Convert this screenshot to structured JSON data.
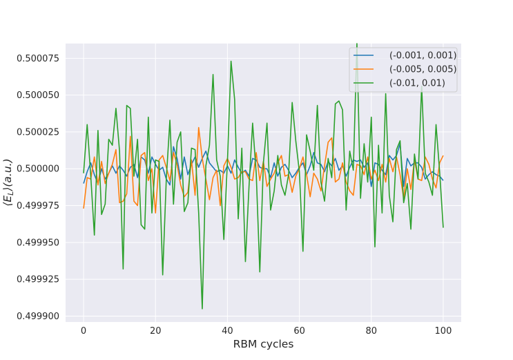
{
  "chart_data": {
    "type": "line",
    "title": "",
    "xlabel": "RBM cycles",
    "ylabel": "⟨E_L⟩(a.u.)",
    "xlim": [
      -5,
      105
    ],
    "ylim": [
      0.499896,
      0.500085
    ],
    "xticks": [
      0,
      20,
      40,
      60,
      80,
      100
    ],
    "xtick_labels": [
      "0",
      "20",
      "40",
      "60",
      "80",
      "100"
    ],
    "yticks": [
      0.4999,
      0.499925,
      0.49995,
      0.499975,
      0.5,
      0.500025,
      0.50005,
      0.500075
    ],
    "ytick_labels": [
      "0.499900",
      "0.499925",
      "0.499950",
      "0.499975",
      "0.500000",
      "0.500025",
      "0.500050",
      "0.500075"
    ],
    "grid": true,
    "legend_position": "top-right",
    "series": [
      {
        "name": "(-0.001, 0.001)",
        "color": "#1f77b4",
        "x": [
          0,
          1,
          2,
          3,
          4,
          5,
          6,
          7,
          8,
          9,
          10,
          11,
          12,
          13,
          14,
          15,
          16,
          17,
          18,
          19,
          20,
          21,
          22,
          23,
          24,
          25,
          26,
          27,
          28,
          29,
          30,
          31,
          32,
          33,
          34,
          35,
          36,
          37,
          38,
          39,
          40,
          41,
          42,
          43,
          44,
          45,
          46,
          47,
          48,
          49,
          50,
          51,
          52,
          53,
          54,
          55,
          56,
          57,
          58,
          59,
          60,
          61,
          62,
          63,
          64,
          65,
          66,
          67,
          68,
          69,
          70,
          71,
          72,
          73,
          74,
          75,
          76,
          77,
          78,
          79,
          80,
          81,
          82,
          83,
          84,
          85,
          86,
          87,
          88,
          89,
          90,
          91,
          92,
          93,
          94,
          95,
          96,
          97,
          98,
          99,
          100
        ],
        "y": [
          0.49999,
          0.499998,
          0.500004,
          0.499996,
          0.49999,
          0.5,
          0.499993,
          0.499997,
          0.500002,
          0.499997,
          0.500002,
          0.499999,
          0.499995,
          0.500001,
          0.500003,
          0.499994,
          0.500008,
          0.500006,
          0.499997,
          0.500008,
          0.500003,
          0.499999,
          0.500001,
          0.499993,
          0.499989,
          0.500015,
          0.500007,
          0.499993,
          0.500008,
          0.499996,
          0.500003,
          0.500008,
          0.500001,
          0.500007,
          0.500012,
          0.500004,
          0.500001,
          0.499998,
          0.499999,
          0.499997,
          0.500002,
          0.499997,
          0.500006,
          0.500001,
          0.499997,
          0.499999,
          0.499995,
          0.500007,
          0.500006,
          0.500001,
          0.5,
          0.5,
          0.499994,
          0.500004,
          0.499995,
          0.500001,
          0.500003,
          0.499999,
          0.499994,
          0.499997,
          0.500001,
          0.500004,
          0.499996,
          0.500002,
          0.500011,
          0.500004,
          0.500003,
          0.499998,
          0.500005,
          0.500002,
          0.500007,
          0.499999,
          0.500002,
          0.499995,
          0.500001,
          0.500006,
          0.500005,
          0.500006,
          0.500001,
          0.500004,
          0.499988,
          0.500004,
          0.500003,
          0.499999,
          0.499996,
          0.500009,
          0.500006,
          0.500009,
          0.500017,
          0.499988,
          0.500007,
          0.500002,
          0.500004,
          0.500004,
          0.500001,
          0.499993,
          0.499996,
          0.499998,
          0.499996,
          0.499995,
          0.499992
        ]
      },
      {
        "name": "(-0.005, 0.005)",
        "color": "#ff7f0e",
        "x": [
          0,
          1,
          2,
          3,
          4,
          5,
          6,
          7,
          8,
          9,
          10,
          11,
          12,
          13,
          14,
          15,
          16,
          17,
          18,
          19,
          20,
          21,
          22,
          23,
          24,
          25,
          26,
          27,
          28,
          29,
          30,
          31,
          32,
          33,
          34,
          35,
          36,
          37,
          38,
          39,
          40,
          41,
          42,
          43,
          44,
          45,
          46,
          47,
          48,
          49,
          50,
          51,
          52,
          53,
          54,
          55,
          56,
          57,
          58,
          59,
          60,
          61,
          62,
          63,
          64,
          65,
          66,
          67,
          68,
          69,
          70,
          71,
          72,
          73,
          74,
          75,
          76,
          77,
          78,
          79,
          80,
          81,
          82,
          83,
          84,
          85,
          86,
          87,
          88,
          89,
          90,
          91,
          92,
          93,
          94,
          95,
          96,
          97,
          98,
          99,
          100
        ],
        "y": [
          0.499973,
          0.499994,
          0.499993,
          0.500008,
          0.499989,
          0.500005,
          0.49999,
          0.499997,
          0.500003,
          0.500013,
          0.499977,
          0.499978,
          0.499983,
          0.500022,
          0.499978,
          0.499975,
          0.500009,
          0.500011,
          0.499992,
          0.5,
          0.49997,
          0.500006,
          0.500009,
          0.500001,
          0.499992,
          0.500011,
          0.500003,
          0.499989,
          0.499981,
          0.499984,
          0.500006,
          0.499982,
          0.500028,
          0.500007,
          0.499993,
          0.499979,
          0.499994,
          0.499999,
          0.499975,
          0.500002,
          0.500007,
          0.500001,
          0.499993,
          0.499994,
          0.499998,
          0.499998,
          0.499993,
          0.499992,
          0.500011,
          0.499992,
          0.500005,
          0.499988,
          0.499993,
          0.499997,
          0.500004,
          0.500009,
          0.499995,
          0.499996,
          0.499984,
          0.499995,
          0.5,
          0.500008,
          0.499996,
          0.499981,
          0.499997,
          0.499993,
          0.499985,
          0.500002,
          0.500018,
          0.500021,
          0.499991,
          0.499993,
          0.500004,
          0.499991,
          0.499985,
          0.499982,
          0.500003,
          0.500002,
          0.499996,
          0.500008,
          0.499993,
          0.499999,
          0.499992,
          0.500003,
          0.499991,
          0.500007,
          0.499998,
          0.500008,
          0.499996,
          0.49998,
          0.5,
          0.499986,
          0.500006,
          0.499993,
          0.499992,
          0.500008,
          0.500003,
          0.499993,
          0.499987,
          0.500004,
          0.500009
        ]
      },
      {
        "name": "(-0.01, 0.01)",
        "color": "#2ca02c",
        "x": [
          0,
          1,
          2,
          3,
          4,
          5,
          6,
          7,
          8,
          9,
          10,
          11,
          12,
          13,
          14,
          15,
          16,
          17,
          18,
          19,
          20,
          21,
          22,
          23,
          24,
          25,
          26,
          27,
          28,
          29,
          30,
          31,
          32,
          33,
          34,
          35,
          36,
          37,
          38,
          39,
          40,
          41,
          42,
          43,
          44,
          45,
          46,
          47,
          48,
          49,
          50,
          51,
          52,
          53,
          54,
          55,
          56,
          57,
          58,
          59,
          60,
          61,
          62,
          63,
          64,
          65,
          66,
          67,
          68,
          69,
          70,
          71,
          72,
          73,
          74,
          75,
          76,
          77,
          78,
          79,
          80,
          81,
          82,
          83,
          84,
          85,
          86,
          87,
          88,
          89,
          90,
          91,
          92,
          93,
          94,
          95,
          96,
          97,
          98,
          99,
          100
        ],
        "y": [
          0.499997,
          0.50003,
          0.499995,
          0.499955,
          0.500026,
          0.499969,
          0.499976,
          0.50002,
          0.500016,
          0.500041,
          0.500012,
          0.499932,
          0.500043,
          0.500041,
          0.499995,
          0.50002,
          0.499962,
          0.499959,
          0.500035,
          0.49997,
          0.500006,
          0.500005,
          0.499928,
          0.499993,
          0.500033,
          0.499976,
          0.500018,
          0.500025,
          0.499971,
          0.499977,
          0.500014,
          0.500013,
          0.49997,
          0.499905,
          0.500002,
          0.500016,
          0.500064,
          0.500006,
          0.499995,
          0.499952,
          0.500005,
          0.500073,
          0.500047,
          0.499966,
          0.500014,
          0.499937,
          0.499988,
          0.500031,
          0.499997,
          0.49993,
          0.500004,
          0.500031,
          0.499972,
          0.499985,
          0.500009,
          0.499989,
          0.499982,
          0.499996,
          0.500045,
          0.500019,
          0.499998,
          0.499944,
          0.500023,
          0.500012,
          0.499999,
          0.500043,
          0.499991,
          0.499978,
          0.500007,
          0.499994,
          0.500044,
          0.500046,
          0.50004,
          0.499972,
          0.500012,
          0.499999,
          0.500085,
          0.49998,
          0.500017,
          0.499991,
          0.500035,
          0.499947,
          0.500016,
          0.49997,
          0.500051,
          0.499982,
          0.499964,
          0.500013,
          0.500019,
          0.499977,
          0.49999,
          0.499959,
          0.50001,
          0.499993,
          0.500056,
          0.499997,
          0.499991,
          0.499982,
          0.50003,
          0.499998,
          0.49996
        ]
      }
    ]
  }
}
